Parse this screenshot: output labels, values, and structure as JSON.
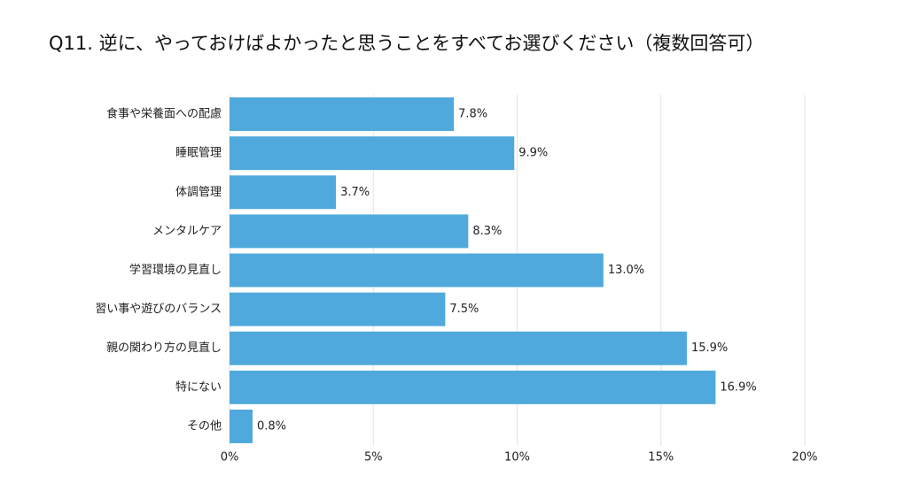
{
  "chart_data": {
    "type": "hbar",
    "title": "Q11. 逆に、やっておけばよかったと思うことをすべてお選びください（複数回答可）",
    "categories": [
      "食事や栄養面への配慮",
      "睡眠管理",
      "体調管理",
      "メンタルケア",
      "学習環境の見直し",
      "習い事や遊びのバランス",
      "親の関わり方の見直し",
      "特にない",
      "その他"
    ],
    "values": [
      7.8,
      9.9,
      3.7,
      8.3,
      13.0,
      7.5,
      15.9,
      16.9,
      0.8
    ],
    "value_labels": [
      "7.8%",
      "9.9%",
      "3.7%",
      "8.3%",
      "13.0%",
      "7.5%",
      "15.9%",
      "16.9%",
      "0.8%"
    ],
    "color": "#4fa9dc",
    "xlim": [
      0,
      20
    ],
    "xticks": [
      {
        "value": 0,
        "label": "0%"
      },
      {
        "value": 5,
        "label": "5%"
      },
      {
        "value": 10,
        "label": "10%"
      },
      {
        "value": 15,
        "label": "15%"
      },
      {
        "value": 20,
        "label": "20%"
      }
    ],
    "grid": true
  }
}
